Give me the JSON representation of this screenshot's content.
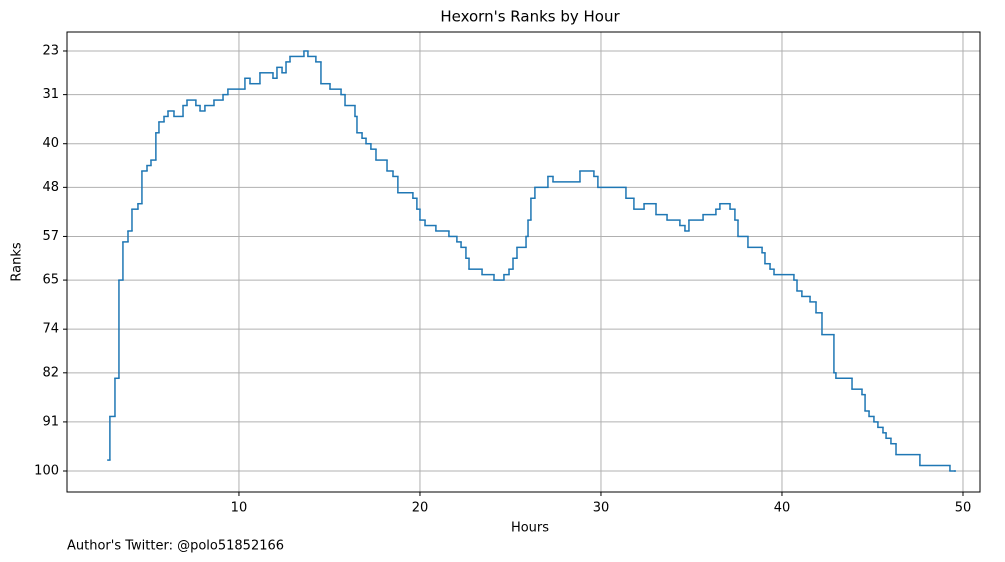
{
  "chart_data": {
    "type": "step",
    "title": "Hexorn's Ranks by Hour",
    "xlabel": "Hours",
    "ylabel": "Ranks",
    "annotation": "Author's Twitter: @polo51852166",
    "grid": true,
    "y_inverted": true,
    "color": "#1f77b4",
    "xlim": [
      0.5,
      50.94
    ],
    "ylim": [
      103.85,
      19.52
    ],
    "xticks": [
      10,
      20,
      30,
      40,
      50
    ],
    "yticks": [
      23,
      31,
      40,
      48,
      57,
      65,
      74,
      82,
      91,
      100
    ],
    "x": [
      2.76,
      2.87,
      3.15,
      3.37,
      3.59,
      3.87,
      4.09,
      4.42,
      4.64,
      4.92,
      5.14,
      5.41,
      5.58,
      5.86,
      6.08,
      6.41,
      6.91,
      7.13,
      7.62,
      7.85,
      8.12,
      8.62,
      9.12,
      9.39,
      10.33,
      10.61,
      11.16,
      11.88,
      12.1,
      12.38,
      12.6,
      12.82,
      13.59,
      13.81,
      14.25,
      14.53,
      15.03,
      15.64,
      15.86,
      16.41,
      16.52,
      16.8,
      17.02,
      17.29,
      17.57,
      18.18,
      18.51,
      18.78,
      19.61,
      19.83,
      20.0,
      20.28,
      20.88,
      21.6,
      22.04,
      22.27,
      22.54,
      22.71,
      23.43,
      24.09,
      24.64,
      24.92,
      25.14,
      25.36,
      25.86,
      25.97,
      26.13,
      26.35,
      27.07,
      27.35,
      28.84,
      29.61,
      29.83,
      31.38,
      31.82,
      32.38,
      33.04,
      33.65,
      34.36,
      34.64,
      34.86,
      35.64,
      36.35,
      36.57,
      37.13,
      37.4,
      37.57,
      38.12,
      38.9,
      39.06,
      39.34,
      39.56,
      40.66,
      40.83,
      41.1,
      41.55,
      41.88,
      42.21,
      42.87,
      42.98,
      43.87,
      44.42,
      44.59,
      44.81,
      45.08,
      45.3,
      45.58,
      45.75,
      46.02,
      46.3,
      47.62,
      49.28,
      49.56
    ],
    "values": [
      98,
      90,
      83,
      65,
      58,
      56,
      52,
      51,
      45,
      44,
      43,
      38,
      36,
      35,
      34,
      35,
      33,
      32,
      33,
      34,
      33,
      32,
      31,
      30,
      28,
      29,
      27,
      28,
      26,
      27,
      25,
      24,
      23,
      24,
      25,
      29,
      30,
      31,
      33,
      35,
      38,
      39,
      40,
      41,
      43,
      45,
      46,
      49,
      50,
      52,
      54,
      55,
      56,
      57,
      58,
      59,
      61,
      63,
      64,
      65,
      64,
      63,
      61,
      59,
      57,
      54,
      50,
      48,
      46,
      47,
      45,
      46,
      48,
      50,
      52,
      51,
      53,
      54,
      55,
      56,
      54,
      53,
      52,
      51,
      52,
      54,
      57,
      59,
      60,
      62,
      63,
      64,
      65,
      67,
      68,
      69,
      71,
      75,
      82,
      83,
      85,
      86,
      89,
      90,
      91,
      92,
      93,
      94,
      95,
      97,
      99,
      100,
      100
    ]
  }
}
